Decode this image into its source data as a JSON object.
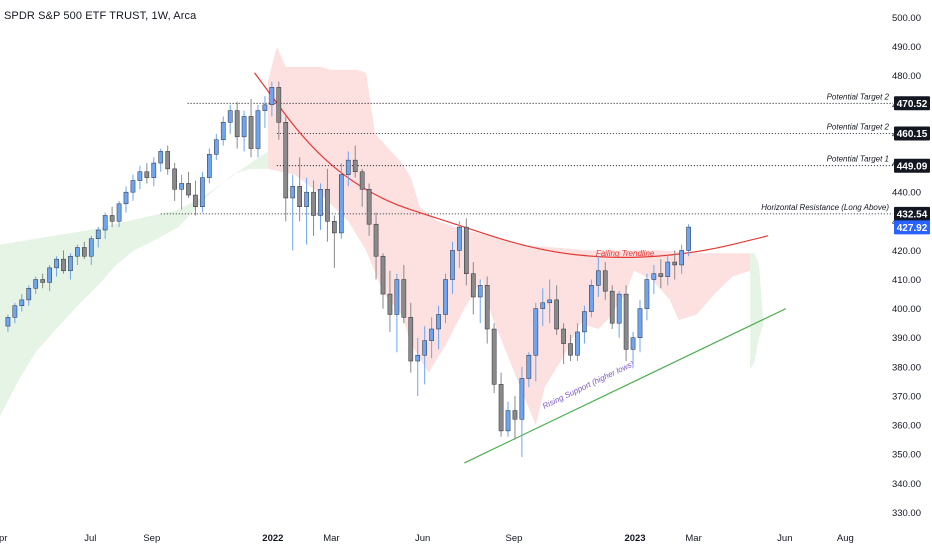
{
  "chart_data": {
    "type": "candlestick",
    "title": "SPDR S&P 500 ETF TRUST, 1W, Arca",
    "y_ticks": [
      330,
      340,
      350,
      360,
      370,
      380,
      390,
      400,
      410,
      420,
      430,
      440,
      450,
      460,
      470,
      480,
      490,
      500
    ],
    "y_tick_labels": [
      "330.00",
      "340.00",
      "350.00",
      "360.00",
      "370.00",
      "380.00",
      "390.00",
      "400.00",
      "410.00",
      "420.00",
      "430.00",
      "440.00",
      "450.00",
      "460.00",
      "470.00",
      "480.00",
      "490.00",
      "500.00"
    ],
    "ylim": [
      325,
      506
    ],
    "x_ticks": [
      {
        "label": "Apr",
        "date": "2021-04-01"
      },
      {
        "label": "Jul",
        "date": "2021-07-01"
      },
      {
        "label": "Sep",
        "date": "2021-09-01"
      },
      {
        "label": "2022",
        "date": "2022-01-01"
      },
      {
        "label": "Mar",
        "date": "2022-03-01"
      },
      {
        "label": "Jun",
        "date": "2022-06-01"
      },
      {
        "label": "Sep",
        "date": "2022-09-01"
      },
      {
        "label": "2023",
        "date": "2023-01-01"
      },
      {
        "label": "Mar",
        "date": "2023-03-01"
      },
      {
        "label": "Jun",
        "date": "2023-06-01"
      },
      {
        "label": "Aug",
        "date": "2023-08-01"
      }
    ],
    "xlim": [
      "2021-04-01",
      "2023-09-18"
    ],
    "candles": {
      "x_start": "2021-04-09",
      "interval_days": 7,
      "ohlc": [
        [
          394,
          398,
          392,
          397
        ],
        [
          397,
          402,
          395,
          401
        ],
        [
          401,
          405,
          399,
          403
        ],
        [
          403,
          408,
          401,
          407
        ],
        [
          407,
          411,
          405,
          410
        ],
        [
          410,
          412,
          407,
          409
        ],
        [
          409,
          415,
          406,
          414
        ],
        [
          414,
          418,
          411,
          417
        ],
        [
          417,
          420,
          412,
          413
        ],
        [
          413,
          419,
          410,
          418
        ],
        [
          418,
          422,
          415,
          421
        ],
        [
          421,
          423,
          417,
          418
        ],
        [
          418,
          425,
          415,
          424
        ],
        [
          424,
          428,
          421,
          427
        ],
        [
          427,
          433,
          424,
          432
        ],
        [
          432,
          435,
          428,
          430
        ],
        [
          430,
          437,
          428,
          436
        ],
        [
          436,
          442,
          433,
          440
        ],
        [
          440,
          446,
          437,
          444
        ],
        [
          444,
          449,
          441,
          447
        ],
        [
          447,
          450,
          443,
          445
        ],
        [
          445,
          452,
          442,
          450
        ],
        [
          450,
          455,
          447,
          454
        ],
        [
          454,
          456,
          446,
          448
        ],
        [
          448,
          450,
          437,
          441
        ],
        [
          441,
          446,
          434,
          443
        ],
        [
          443,
          447,
          438,
          439
        ],
        [
          439,
          444,
          432,
          435
        ],
        [
          435,
          447,
          433,
          445
        ],
        [
          445,
          455,
          443,
          453
        ],
        [
          453,
          460,
          451,
          458
        ],
        [
          458,
          466,
          456,
          464
        ],
        [
          464,
          470,
          460,
          468
        ],
        [
          468,
          471,
          455,
          459
        ],
        [
          459,
          468,
          454,
          466
        ],
        [
          466,
          472,
          452,
          455
        ],
        [
          455,
          470,
          452,
          468
        ],
        [
          468,
          473,
          462,
          470
        ],
        [
          470,
          478,
          466,
          476
        ],
        [
          476,
          478,
          458,
          464
        ],
        [
          464,
          466,
          430,
          438
        ],
        [
          438,
          446,
          420,
          442
        ],
        [
          442,
          452,
          430,
          435
        ],
        [
          435,
          445,
          422,
          440
        ],
        [
          440,
          444,
          425,
          432
        ],
        [
          432,
          443,
          427,
          441
        ],
        [
          441,
          448,
          423,
          430
        ],
        [
          430,
          432,
          414,
          426
        ],
        [
          426,
          450,
          424,
          446
        ],
        [
          446,
          454,
          442,
          451
        ],
        [
          451,
          456,
          445,
          447
        ],
        [
          447,
          448,
          435,
          441
        ],
        [
          441,
          443,
          425,
          429
        ],
        [
          429,
          433,
          410,
          418
        ],
        [
          418,
          419,
          400,
          405
        ],
        [
          405,
          413,
          392,
          398
        ],
        [
          398,
          412,
          385,
          410
        ],
        [
          410,
          415,
          395,
          397
        ],
        [
          397,
          402,
          378,
          382
        ],
        [
          382,
          390,
          370,
          384
        ],
        [
          384,
          394,
          374,
          389
        ],
        [
          389,
          397,
          383,
          393
        ],
        [
          393,
          401,
          386,
          398
        ],
        [
          398,
          412,
          395,
          410
        ],
        [
          410,
          423,
          405,
          420
        ],
        [
          420,
          430,
          414,
          428
        ],
        [
          428,
          431,
          408,
          412
        ],
        [
          412,
          416,
          398,
          404
        ],
        [
          404,
          410,
          395,
          408
        ],
        [
          408,
          411,
          388,
          393
        ],
        [
          393,
          395,
          371,
          374
        ],
        [
          374,
          378,
          356,
          358
        ],
        [
          358,
          368,
          356,
          365
        ],
        [
          365,
          370,
          355,
          362
        ],
        [
          362,
          380,
          349,
          376
        ],
        [
          376,
          385,
          373,
          384
        ],
        [
          384,
          402,
          375,
          400
        ],
        [
          400,
          407,
          394,
          402
        ],
        [
          402,
          410,
          395,
          403
        ],
        [
          403,
          408,
          391,
          393
        ],
        [
          393,
          395,
          381,
          388
        ],
        [
          388,
          391,
          382,
          384
        ],
        [
          384,
          395,
          382,
          392
        ],
        [
          392,
          401,
          388,
          399
        ],
        [
          399,
          410,
          397,
          408
        ],
        [
          408,
          418,
          404,
          413
        ],
        [
          413,
          416,
          403,
          406
        ],
        [
          406,
          408,
          393,
          395
        ],
        [
          395,
          406,
          390,
          405
        ],
        [
          405,
          408,
          382,
          386
        ],
        [
          386,
          392,
          380,
          390
        ],
        [
          390,
          403,
          385,
          400
        ],
        [
          400,
          412,
          396,
          410
        ],
        [
          410,
          415,
          405,
          412
        ],
        [
          412,
          417,
          407,
          411
        ],
        [
          411,
          418,
          408,
          416
        ],
        [
          416,
          420,
          410,
          415
        ],
        [
          415,
          422,
          412,
          420
        ],
        [
          420,
          429,
          418,
          428
        ]
      ]
    },
    "cloud": {
      "green_upper": [
        [
          0.0,
          422
        ],
        [
          0.04,
          424
        ],
        [
          0.1,
          427
        ],
        [
          0.2,
          434
        ],
        [
          0.23,
          439
        ],
        [
          0.29,
          452
        ],
        [
          0.3,
          454
        ]
      ],
      "green_lower": [
        [
          0.0,
          363
        ],
        [
          0.02,
          375
        ],
        [
          0.04,
          385
        ],
        [
          0.06,
          392
        ],
        [
          0.09,
          402
        ],
        [
          0.11,
          408
        ],
        [
          0.13,
          415
        ],
        [
          0.15,
          420
        ],
        [
          0.17,
          423
        ],
        [
          0.2,
          428
        ],
        [
          0.23,
          438
        ],
        [
          0.26,
          446
        ],
        [
          0.28,
          448
        ],
        [
          0.3,
          448
        ]
      ],
      "red_upper": [
        [
          0.3,
          478
        ],
        [
          0.31,
          490
        ],
        [
          0.32,
          483
        ],
        [
          0.36,
          483
        ],
        [
          0.37,
          482
        ],
        [
          0.4,
          482
        ],
        [
          0.41,
          481
        ],
        [
          0.42,
          460
        ],
        [
          0.45,
          450
        ],
        [
          0.46,
          445
        ],
        [
          0.47,
          435
        ],
        [
          0.49,
          430
        ],
        [
          0.52,
          427
        ],
        [
          0.55,
          425
        ],
        [
          0.58,
          422
        ],
        [
          0.62,
          421
        ],
        [
          0.66,
          420
        ],
        [
          0.7,
          420
        ],
        [
          0.74,
          420
        ],
        [
          0.78,
          419
        ],
        [
          0.82,
          419
        ],
        [
          0.84,
          419
        ]
      ],
      "red_lower": [
        [
          0.3,
          448
        ],
        [
          0.33,
          446
        ],
        [
          0.36,
          439
        ],
        [
          0.39,
          430
        ],
        [
          0.41,
          420
        ],
        [
          0.43,
          405
        ],
        [
          0.45,
          398
        ],
        [
          0.46,
          388
        ],
        [
          0.48,
          378
        ],
        [
          0.5,
          388
        ],
        [
          0.52,
          400
        ],
        [
          0.54,
          410
        ],
        [
          0.55,
          398
        ],
        [
          0.58,
          375
        ],
        [
          0.6,
          360
        ],
        [
          0.61,
          373
        ],
        [
          0.63,
          383
        ],
        [
          0.65,
          395
        ],
        [
          0.67,
          393
        ],
        [
          0.68,
          396
        ],
        [
          0.7,
          405
        ],
        [
          0.71,
          413
        ],
        [
          0.73,
          410
        ],
        [
          0.75,
          403
        ],
        [
          0.76,
          396
        ],
        [
          0.78,
          398
        ],
        [
          0.8,
          405
        ],
        [
          0.82,
          411
        ],
        [
          0.84,
          413
        ]
      ],
      "green_tail_upper": [
        [
          0.84,
          419
        ],
        [
          0.845,
          419
        ],
        [
          0.85,
          415
        ],
        [
          0.855,
          395
        ]
      ],
      "green_tail_lower": [
        [
          0.84,
          379
        ],
        [
          0.845,
          382
        ],
        [
          0.85,
          390
        ],
        [
          0.855,
          395
        ]
      ]
    },
    "levels": [
      {
        "label": "Potential Target 2",
        "value": "470.52",
        "y": 470.52,
        "x_from": 0.21
      },
      {
        "label": "Potential Target 2",
        "value": "460.15",
        "y": 460.15,
        "x_from": 0.31
      },
      {
        "label": "Potential Target 1",
        "value": "449.09",
        "y": 449.09,
        "x_from": 0.31
      },
      {
        "label": "Horizontal Resistance (Long Above)",
        "value": "432.54",
        "y": 432.54,
        "x_from": 0.18
      }
    ],
    "last_price": {
      "value": "427.92",
      "y": 427.92
    },
    "trendlines": [
      {
        "label": "Failing Trendline",
        "color": "#e53935",
        "points": [
          [
            0.285,
            481
          ],
          [
            0.35,
            454
          ],
          [
            0.42,
            438
          ],
          [
            0.5,
            430
          ],
          [
            0.6,
            420
          ],
          [
            0.69,
            417
          ],
          [
            0.78,
            419
          ],
          [
            0.86,
            425
          ]
        ],
        "label_at": [
          0.7,
          418
        ]
      },
      {
        "label": "Rising Support (higher lows)",
        "color": "#4caf50",
        "points": [
          [
            0.52,
            347
          ],
          [
            0.88,
            400
          ]
        ],
        "label_at": [
          0.66,
          373
        ]
      }
    ],
    "colors": {
      "up": "#6ea5f0",
      "down": "#8a8a8a",
      "cloud_green": "#e6f4e6",
      "cloud_red": "#fde0e0",
      "last_price_bg": "#2962ff",
      "level_badge_bg": "#131722",
      "trend_red": "#e53935",
      "trend_green": "#4caf50",
      "annotation_purple": "#7e57c2"
    }
  }
}
